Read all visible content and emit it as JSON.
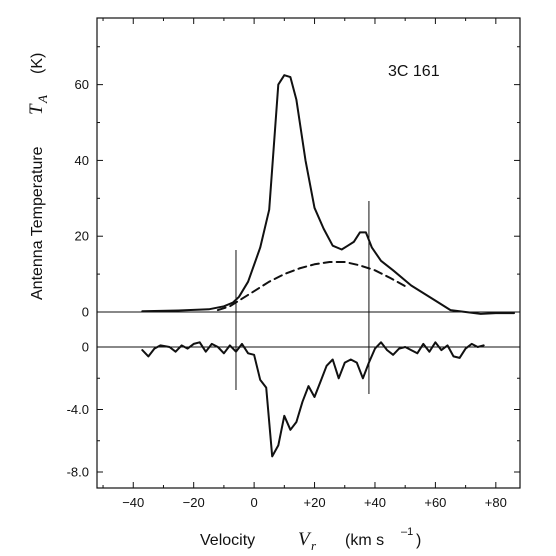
{
  "chart_data": {
    "type": "line",
    "title": "3C  161",
    "xlabel": {
      "word": "Velocity",
      "symbol": "V",
      "subscript": "r",
      "units_prefix": "(km  s",
      "units_exp": "–1",
      "units_suffix": ")"
    },
    "ylabel": {
      "words": "Antenna  Temperature",
      "symbol": "T",
      "subscript": "A",
      "units": "(K)"
    },
    "xlim": [
      -52,
      88
    ],
    "x_ticks": [
      -40,
      -20,
      0,
      20,
      40,
      60,
      80
    ],
    "x_tick_labels": [
      "−40",
      "−20",
      "0",
      "+20",
      "+40",
      "+60",
      "+80"
    ],
    "panels": [
      {
        "name": "emission",
        "ylim": [
          0,
          76
        ],
        "y_ticks": [
          0,
          20,
          40,
          60
        ],
        "y_tick_labels": [
          "0",
          "20",
          "40",
          "60"
        ],
        "series": [
          {
            "style": "solid",
            "x": [
              -37,
              -25,
              -15,
              -10,
              -7,
              -5,
              -2,
              2,
              5,
              8,
              10,
              12,
              14,
              17,
              20,
              23,
              26,
              29,
              31,
              33,
              35,
              37,
              39,
              42,
              46,
              52,
              60,
              65,
              70,
              75,
              80,
              86
            ],
            "y": [
              0.2,
              0.4,
              0.7,
              1.5,
              2.5,
              4.0,
              8.0,
              17,
              27,
              60,
              62.5,
              62,
              56,
              40,
              27.5,
              22,
              17.5,
              16.5,
              17.5,
              18.5,
              21,
              21,
              17,
              13.5,
              11,
              7,
              3,
              0.5,
              0,
              -0.5,
              -0.3,
              -0.3
            ]
          },
          {
            "style": "dashed",
            "x": [
              -12,
              -8,
              -4,
              0,
              5,
              10,
              15,
              20,
              25,
              30,
              35,
              40,
              45,
              50
            ],
            "y": [
              0.5,
              1.5,
              3.5,
              5.5,
              8.0,
              10.0,
              11.5,
              12.6,
              13.2,
              13.2,
              12.3,
              11.0,
              9.0,
              6.8
            ]
          }
        ]
      },
      {
        "name": "absorption",
        "ylim": [
          -9.0,
          0.6
        ],
        "y_ticks": [
          0,
          -4.0,
          -8.0
        ],
        "y_tick_labels": [
          "0",
          "-4.0",
          "-8.0"
        ],
        "series": [
          {
            "style": "solid",
            "x": [
              -37,
              -35,
              -33,
              -31,
              -28,
              -26,
              -24,
              -22,
              -20,
              -18,
              -16,
              -14,
              -12,
              -10,
              -8,
              -6,
              -4,
              -2,
              0,
              2,
              4,
              6,
              8,
              10,
              12,
              14,
              16,
              18,
              20,
              22,
              24,
              26,
              28,
              30,
              32,
              34,
              36,
              38,
              40,
              42,
              44,
              46,
              48,
              50,
              52,
              54,
              56,
              58,
              60,
              62,
              64,
              66,
              68,
              70,
              72,
              74,
              76
            ],
            "y": [
              -0.2,
              -0.6,
              -0.1,
              0.1,
              0.0,
              -0.3,
              0.1,
              -0.1,
              0.2,
              0.3,
              -0.3,
              0.2,
              0.0,
              -0.4,
              0.1,
              -0.3,
              0.2,
              -0.4,
              -0.5,
              -2.1,
              -2.6,
              -7.0,
              -6.3,
              -4.4,
              -5.3,
              -4.8,
              -3.5,
              -2.5,
              -3.2,
              -2.2,
              -1.2,
              -0.8,
              -2.0,
              -1.0,
              -0.8,
              -1.0,
              -2.0,
              -1.0,
              -0.1,
              0.3,
              -0.2,
              -0.5,
              -0.1,
              0.0,
              -0.2,
              -0.4,
              0.2,
              -0.3,
              0.3,
              -0.2,
              0.1,
              -0.6,
              -0.7,
              -0.1,
              0.2,
              0.0,
              0.1
            ]
          }
        ]
      }
    ],
    "velocity_markers": [
      -6,
      38
    ]
  }
}
